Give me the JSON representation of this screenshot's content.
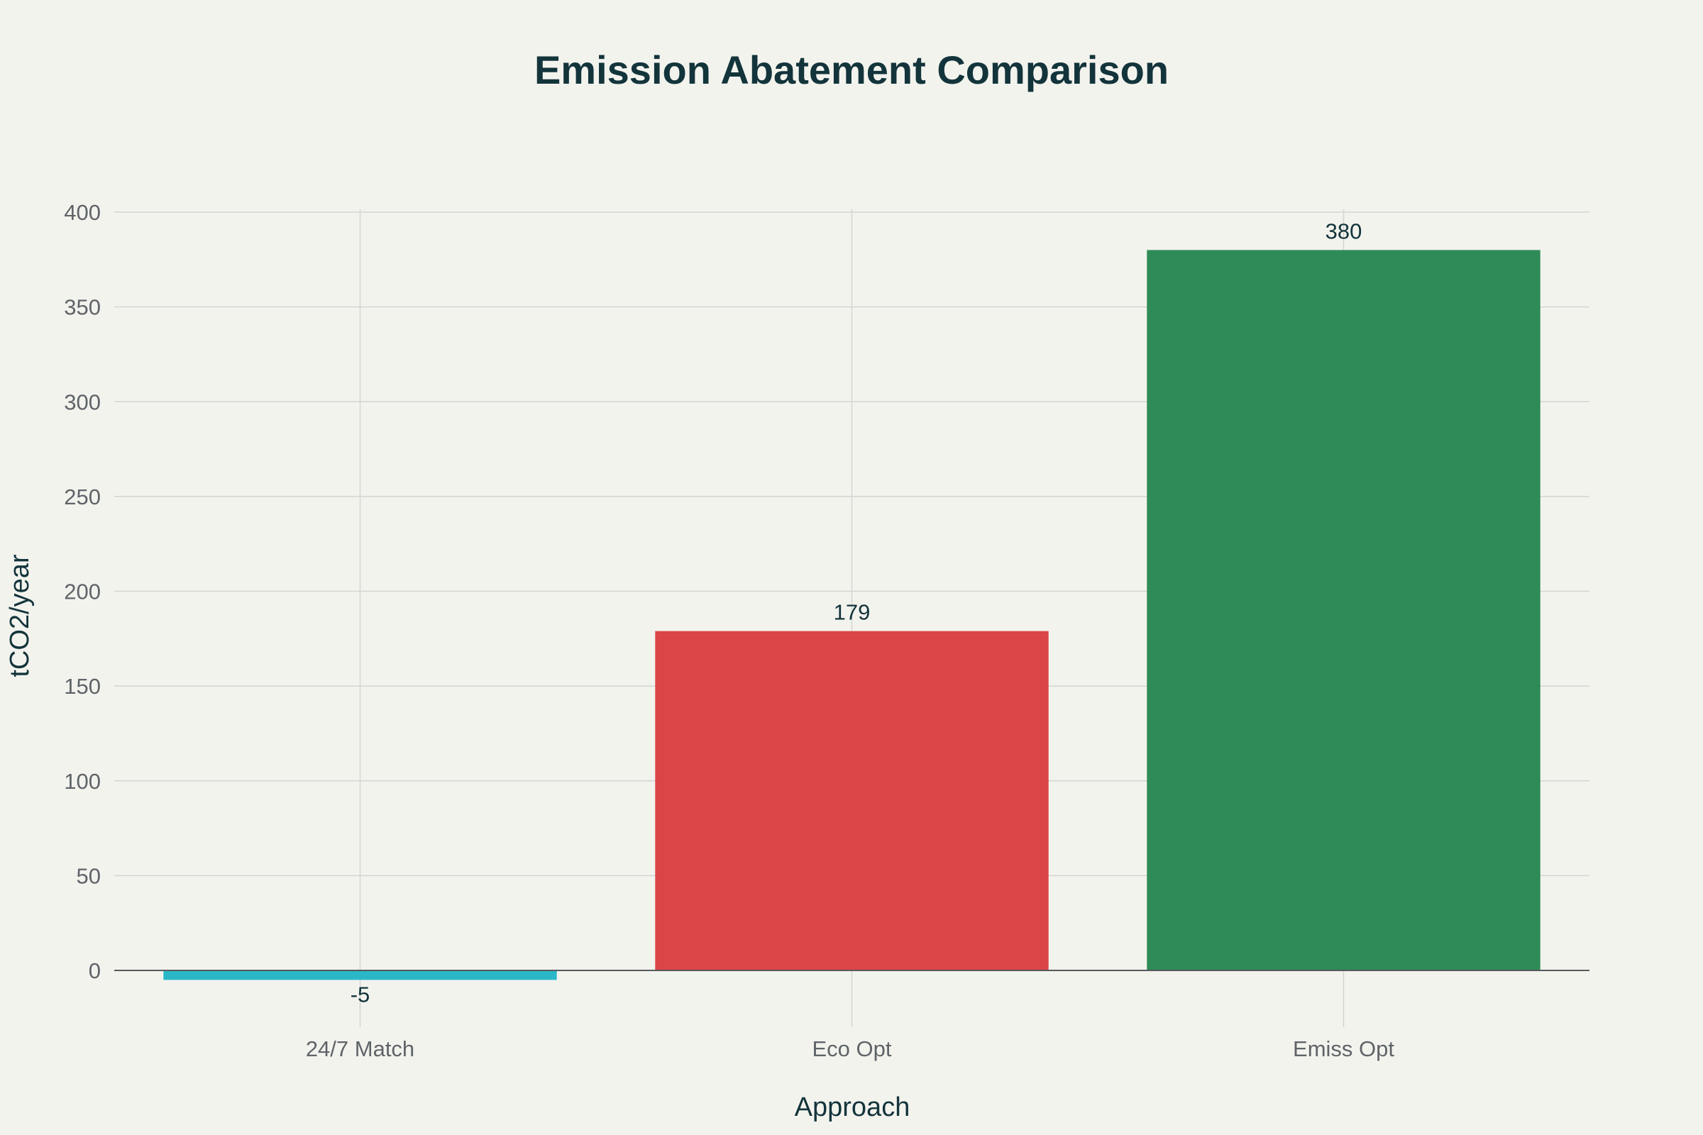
{
  "chart_data": {
    "type": "bar",
    "title": "Emission Abatement Comparison",
    "xlabel": "Approach",
    "ylabel": "tCO2/year",
    "categories": [
      "24/7 Match",
      "Eco Opt",
      "Emiss Opt"
    ],
    "values": [
      -5,
      179,
      380
    ],
    "data_labels": [
      "-5",
      "179",
      "380"
    ],
    "colors": [
      "#2ab8c8",
      "#db4547",
      "#2e8b57"
    ],
    "ylim": [
      -5,
      400
    ],
    "yticks": [
      0,
      50,
      100,
      150,
      200,
      250,
      300,
      350,
      400
    ],
    "ytick_labels": [
      "0",
      "50",
      "100",
      "150",
      "200",
      "250",
      "300",
      "350",
      "400"
    ],
    "grid": true,
    "legend": false
  }
}
